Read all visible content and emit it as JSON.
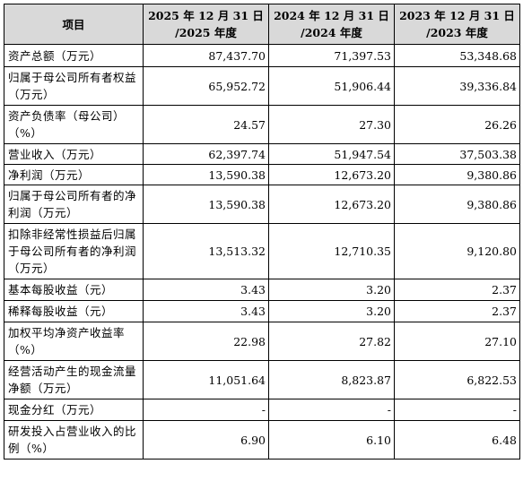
{
  "table": {
    "headers": {
      "item": "项目",
      "col1_line1": "2025 年 12 月 31 日",
      "col1_line2": "/2025 年度",
      "col2_line1": "2024 年 12 月 31 日",
      "col2_line2": "/2024 年度",
      "col3_line1": "2023 年 12 月 31 日",
      "col3_line2": "/2023 年度"
    },
    "rows": [
      {
        "label": "资产总额（万元）",
        "v2025": "87,437.70",
        "v2024": "71,397.53",
        "v2023": "53,348.68"
      },
      {
        "label": "归属于母公司所有者权益（万元）",
        "v2025": "65,952.72",
        "v2024": "51,906.44",
        "v2023": "39,336.84"
      },
      {
        "label": "资产负债率（母公司）（%）",
        "v2025": "24.57",
        "v2024": "27.30",
        "v2023": "26.26"
      },
      {
        "label": "营业收入（万元）",
        "v2025": "62,397.74",
        "v2024": "51,947.54",
        "v2023": "37,503.38"
      },
      {
        "label": "净利润（万元）",
        "v2025": "13,590.38",
        "v2024": "12,673.20",
        "v2023": "9,380.86"
      },
      {
        "label": "归属于母公司所有者的净利润（万元）",
        "v2025": "13,590.38",
        "v2024": "12,673.20",
        "v2023": "9,380.86"
      },
      {
        "label": "扣除非经常性损益后归属于母公司所有者的净利润（万元）",
        "v2025": "13,513.32",
        "v2024": "12,710.35",
        "v2023": "9,120.80"
      },
      {
        "label": "基本每股收益（元）",
        "v2025": "3.43",
        "v2024": "3.20",
        "v2023": "2.37"
      },
      {
        "label": "稀释每股收益（元）",
        "v2025": "3.43",
        "v2024": "3.20",
        "v2023": "2.37"
      },
      {
        "label": "加权平均净资产收益率（%）",
        "v2025": "22.98",
        "v2024": "27.82",
        "v2023": "27.10"
      },
      {
        "label": "经营活动产生的现金流量净额（万元）",
        "v2025": "11,051.64",
        "v2024": "8,823.87",
        "v2023": "6,822.53"
      },
      {
        "label": "现金分红（万元）",
        "v2025": "-",
        "v2024": "-",
        "v2023": "-"
      },
      {
        "label": "研发投入占营业收入的比例（%）",
        "v2025": "6.90",
        "v2024": "6.10",
        "v2023": "6.48"
      }
    ]
  }
}
